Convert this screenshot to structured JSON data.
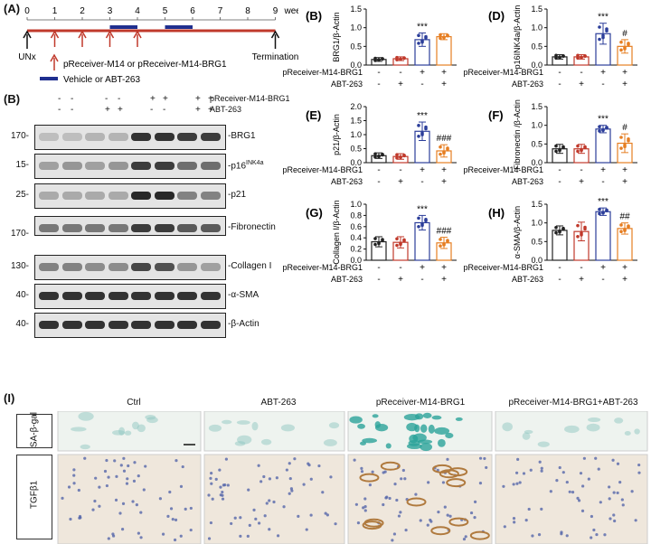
{
  "panelA": {
    "letter": "(A)",
    "week_ticks": [
      "0",
      "1",
      "2",
      "3",
      "4",
      "5",
      "6",
      "7",
      "8",
      "9"
    ],
    "weeks_label": "weeks",
    "start_label": "UNx",
    "end_label": "Termination",
    "legend_arrow": "pReceiver-M14 or pReceiver-M14-BRG1",
    "legend_bar": "Vehicle or ABT-263",
    "colors": {
      "timeline": "#c0392b",
      "treatment_bar": "#1f2f8f",
      "arrow": "#c0392b"
    }
  },
  "panelB_blot": {
    "letter": "(B)",
    "header_rows": [
      {
        "label": "pReceiver-M14-BRG1",
        "signs": [
          "-",
          "-",
          "+",
          "+"
        ]
      },
      {
        "label": "ABT-263",
        "signs": [
          "-",
          "+",
          "-",
          "+"
        ]
      }
    ],
    "rows": [
      {
        "mw": "170-",
        "name": "BRG1"
      },
      {
        "mw": "15-",
        "name": "p16",
        "sup": "INK4a"
      },
      {
        "mw": "25-",
        "name": "p21"
      },
      {
        "mw": "",
        "name": "Fibronectin"
      },
      {
        "mw": "170-",
        "name": ""
      },
      {
        "mw": "130-",
        "name": "Collagen I"
      },
      {
        "mw": "40-",
        "name": "α-SMA"
      },
      {
        "mw": "40-",
        "name": "β-Actin"
      }
    ]
  },
  "x_row_labels": {
    "row1": "pReceiver-M14-BRG1",
    "row2": "ABT-263",
    "signs1": [
      "-",
      "-",
      "+",
      "+"
    ],
    "signs2": [
      "-",
      "+",
      "-",
      "+"
    ]
  },
  "chart_data": [
    {
      "panel": "(B)",
      "type": "bar",
      "ylabel": "BRG1/β-Actin",
      "ylim": [
        0,
        1.5
      ],
      "yticks": [
        "0.0",
        "0.5",
        "1.0",
        "1.5"
      ],
      "values": [
        0.15,
        0.17,
        0.68,
        0.76
      ],
      "errors": [
        0.05,
        0.05,
        0.18,
        0.08
      ],
      "sig": [
        "",
        "",
        "***",
        ""
      ]
    },
    {
      "panel": "(D)",
      "type": "bar",
      "ylabel": "p16INK4a/β-Actin",
      "ylim": [
        0,
        1.5
      ],
      "yticks": [
        "0.0",
        "0.5",
        "1.0",
        "1.5"
      ],
      "values": [
        0.22,
        0.22,
        0.84,
        0.5
      ],
      "errors": [
        0.06,
        0.06,
        0.28,
        0.18
      ],
      "sig": [
        "",
        "",
        "***",
        "#"
      ]
    },
    {
      "panel": "(E)",
      "type": "bar",
      "ylabel": "p21/β-Actin",
      "ylim": [
        0,
        2.0
      ],
      "yticks": [
        "0.0",
        "0.5",
        "1.0",
        "1.5",
        "2.0"
      ],
      "values": [
        0.25,
        0.22,
        1.12,
        0.42
      ],
      "errors": [
        0.1,
        0.1,
        0.33,
        0.22
      ],
      "sig": [
        "",
        "",
        "***",
        "###"
      ]
    },
    {
      "panel": "(F)",
      "type": "bar",
      "ylabel": "Fibronectin /β-Actin",
      "ylim": [
        0,
        1.5
      ],
      "yticks": [
        "0.0",
        "0.5",
        "1.0",
        "1.5"
      ],
      "values": [
        0.37,
        0.37,
        0.9,
        0.52
      ],
      "errors": [
        0.12,
        0.12,
        0.1,
        0.25
      ],
      "sig": [
        "",
        "",
        "***",
        "#"
      ]
    },
    {
      "panel": "(G)",
      "type": "bar",
      "ylabel": "Collagen I/β-Actin",
      "ylim": [
        0,
        1.0
      ],
      "yticks": [
        "0.0",
        "0.2",
        "0.4",
        "0.6",
        "0.8",
        "1.0"
      ],
      "values": [
        0.33,
        0.32,
        0.67,
        0.31
      ],
      "errors": [
        0.09,
        0.1,
        0.13,
        0.1
      ],
      "sig": [
        "",
        "",
        "***",
        "###"
      ]
    },
    {
      "panel": "(H)",
      "type": "bar",
      "ylabel": "α-SMA/β-Actin",
      "ylim": [
        0,
        1.5
      ],
      "yticks": [
        "0.0",
        "0.5",
        "1.0",
        "1.5"
      ],
      "values": [
        0.8,
        0.77,
        1.3,
        0.85
      ],
      "errors": [
        0.12,
        0.25,
        0.1,
        0.15
      ],
      "sig": [
        "",
        "",
        "***",
        "##"
      ]
    }
  ],
  "bar_colors": [
    "#222222",
    "#c0392b",
    "#2c3e9a",
    "#e67e22"
  ],
  "panelI": {
    "letter": "(I)",
    "columns": [
      "Ctrl",
      "ABT-263",
      "pReceiver-M14-BRG1",
      "pReceiver-M14-BRG1+ABT-263"
    ],
    "rows": [
      "SA-β-gal",
      "TGFβ1"
    ]
  }
}
